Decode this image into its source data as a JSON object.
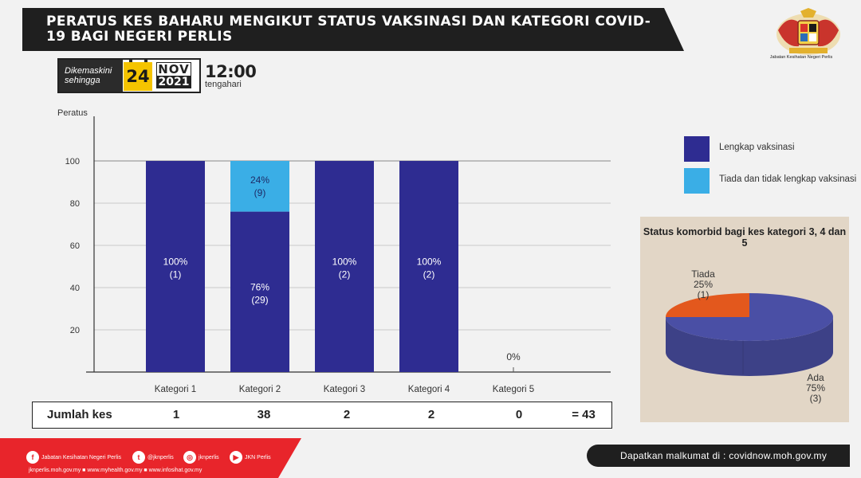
{
  "header": {
    "title": "PERATUS KES BAHARU MENGIKUT STATUS VAKSINASI  DAN KATEGORI COVID-19 BAGI NEGERI PERLIS",
    "logo_caption": "Jabatan Kesihatan Negeri Perlis"
  },
  "date": {
    "label": "Dikemaskini sehingga",
    "day": "24",
    "month": "NOV",
    "year": "2021",
    "time": "12:00",
    "time_label": "tengahari"
  },
  "chart_data": [
    {
      "type": "bar",
      "stacked": true,
      "ylabel": "Peratus",
      "ylim": [
        0,
        100
      ],
      "yticks": [
        "20",
        "40",
        "60",
        "80",
        "100"
      ],
      "grid": true,
      "categories": [
        "Kategori 1",
        "Kategori 2",
        "Kategori 3",
        "Kategori 4",
        "Kategori 5"
      ],
      "series": [
        {
          "name": "Lengkap vaksinasi",
          "color": "#2e2c91",
          "values": [
            100,
            76,
            100,
            100,
            0
          ],
          "labels": [
            "100%",
            "76%",
            "100%",
            "100%",
            "0%"
          ],
          "counts": [
            "(1)",
            "(29)",
            "(2)",
            "(2)",
            ""
          ]
        },
        {
          "name": "Tiada dan tidak lengkap vaksinasi",
          "color": "#3aaee6",
          "values": [
            0,
            24,
            0,
            0,
            0
          ],
          "labels": [
            "",
            "24%",
            "",
            "",
            ""
          ],
          "counts": [
            "",
            "(9)",
            "",
            "",
            ""
          ]
        }
      ],
      "legend_position": "right"
    },
    {
      "type": "pie",
      "title": "Status komorbid bagi kes kategori 3, 4 dan 5",
      "slices": [
        {
          "name": "Tiada",
          "value": 25,
          "label": "25%",
          "count": "(1)",
          "color": "#e3581d"
        },
        {
          "name": "Ada",
          "value": 75,
          "label": "75%",
          "count": "(3)",
          "color": "#4a4fa5"
        }
      ]
    }
  ],
  "totals": {
    "label": "Jumlah kes",
    "values": [
      "1",
      "38",
      "2",
      "2",
      "0"
    ],
    "grand_total": "= 43"
  },
  "footer": {
    "social": [
      {
        "icon": "facebook-icon",
        "glyph": "f",
        "text": "Jabatan Kesihatan Negeri Perlis"
      },
      {
        "icon": "twitter-icon",
        "glyph": "t",
        "text": "@jknperlis"
      },
      {
        "icon": "instagram-icon",
        "glyph": "◎",
        "text": "jknperlis"
      },
      {
        "icon": "youtube-icon",
        "glyph": "▶",
        "text": "JKN Perlis"
      }
    ],
    "links": "jknperlis.moh.gov.my ■ www.myhealth.gov.my ■ www.infosihat.gov.my",
    "right_text": "Dapatkan malkumat di : covidnow.moh.gov.my"
  }
}
